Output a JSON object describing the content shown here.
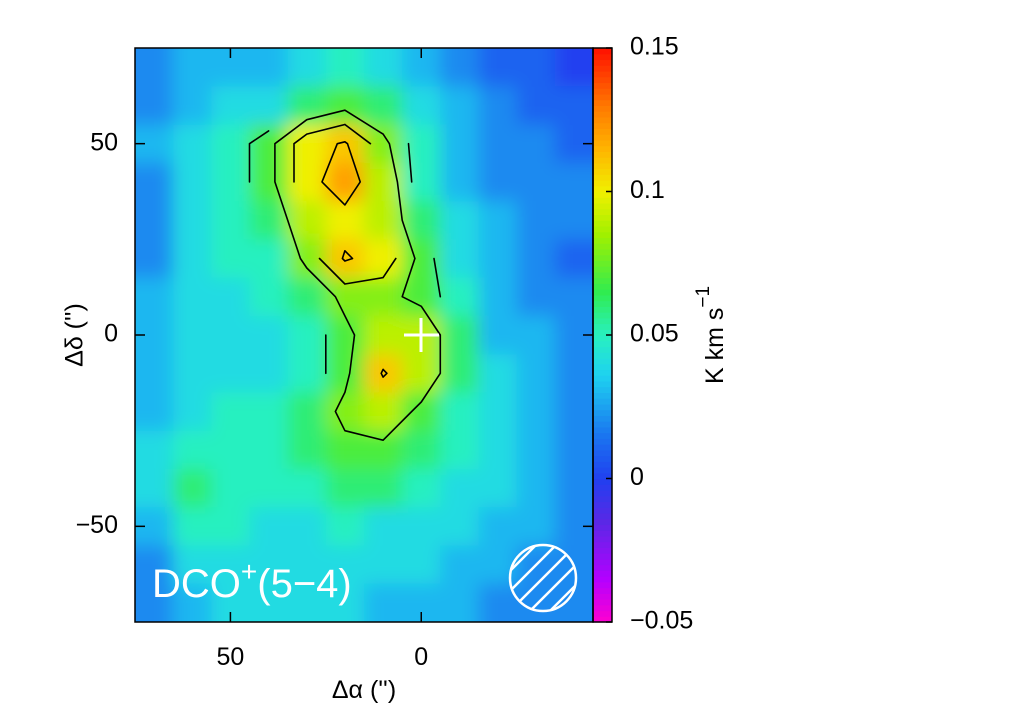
{
  "chart_data": {
    "type": "heatmap",
    "title": {
      "base": "DCO",
      "sup": "+",
      "rest": "(5−4)"
    },
    "xlabel": "Δα ('')",
    "ylabel": "Δδ ('')",
    "colorbar_label": {
      "base": "K km s",
      "sup": "−1"
    },
    "x": [
      70,
      60,
      50,
      40,
      30,
      20,
      10,
      0,
      -10,
      -20,
      -30,
      -40
    ],
    "y": [
      70,
      60,
      50,
      40,
      30,
      20,
      10,
      0,
      -10,
      -20,
      -30,
      -40,
      -50,
      -60,
      -70
    ],
    "values": [
      [
        0.02,
        0.03,
        0.03,
        0.03,
        0.04,
        0.05,
        0.04,
        0.03,
        0.02,
        0.01,
        0.01,
        0.0
      ],
      [
        0.02,
        0.03,
        0.04,
        0.04,
        0.06,
        0.07,
        0.06,
        0.04,
        0.03,
        0.02,
        0.01,
        0.01
      ],
      [
        0.03,
        0.04,
        0.05,
        0.07,
        0.1,
        0.11,
        0.08,
        0.05,
        0.03,
        0.02,
        0.02,
        0.01
      ],
      [
        0.02,
        0.04,
        0.05,
        0.07,
        0.1,
        0.12,
        0.09,
        0.05,
        0.03,
        0.02,
        0.02,
        0.02
      ],
      [
        0.02,
        0.04,
        0.05,
        0.06,
        0.09,
        0.1,
        0.09,
        0.06,
        0.04,
        0.03,
        0.02,
        0.02
      ],
      [
        0.02,
        0.04,
        0.05,
        0.05,
        0.08,
        0.11,
        0.1,
        0.07,
        0.04,
        0.03,
        0.02,
        0.01
      ],
      [
        0.03,
        0.04,
        0.04,
        0.05,
        0.06,
        0.08,
        0.08,
        0.07,
        0.05,
        0.03,
        0.02,
        0.02
      ],
      [
        0.03,
        0.04,
        0.04,
        0.04,
        0.05,
        0.07,
        0.09,
        0.09,
        0.06,
        0.03,
        0.03,
        0.02
      ],
      [
        0.03,
        0.04,
        0.04,
        0.04,
        0.05,
        0.07,
        0.11,
        0.09,
        0.06,
        0.04,
        0.03,
        0.02
      ],
      [
        0.03,
        0.04,
        0.05,
        0.05,
        0.06,
        0.08,
        0.09,
        0.07,
        0.05,
        0.04,
        0.03,
        0.02
      ],
      [
        0.04,
        0.05,
        0.05,
        0.05,
        0.06,
        0.07,
        0.07,
        0.06,
        0.05,
        0.04,
        0.03,
        0.02
      ],
      [
        0.04,
        0.06,
        0.05,
        0.05,
        0.05,
        0.06,
        0.06,
        0.05,
        0.04,
        0.04,
        0.03,
        0.02
      ],
      [
        0.03,
        0.05,
        0.05,
        0.04,
        0.04,
        0.05,
        0.04,
        0.04,
        0.04,
        0.03,
        0.03,
        0.02
      ],
      [
        0.02,
        0.04,
        0.04,
        0.04,
        0.04,
        0.04,
        0.04,
        0.04,
        0.03,
        0.03,
        0.02,
        0.02
      ],
      [
        0.02,
        0.03,
        0.04,
        0.04,
        0.04,
        0.04,
        0.03,
        0.03,
        0.03,
        0.02,
        0.02,
        0.02
      ]
    ],
    "contour_levels": [
      0.06,
      0.075,
      0.09,
      0.108
    ],
    "xlim": [
      75,
      -45
    ],
    "ylim": [
      -75,
      75
    ],
    "xticks": [
      50,
      0
    ],
    "yticks": [
      {
        "value": -50,
        "label": "−50"
      },
      0,
      50
    ],
    "clim": [
      -0.05,
      0.15
    ],
    "cticks": [
      {
        "value": -0.05,
        "label": "−0.05"
      },
      0,
      0.05,
      0.1,
      0.15
    ]
  }
}
